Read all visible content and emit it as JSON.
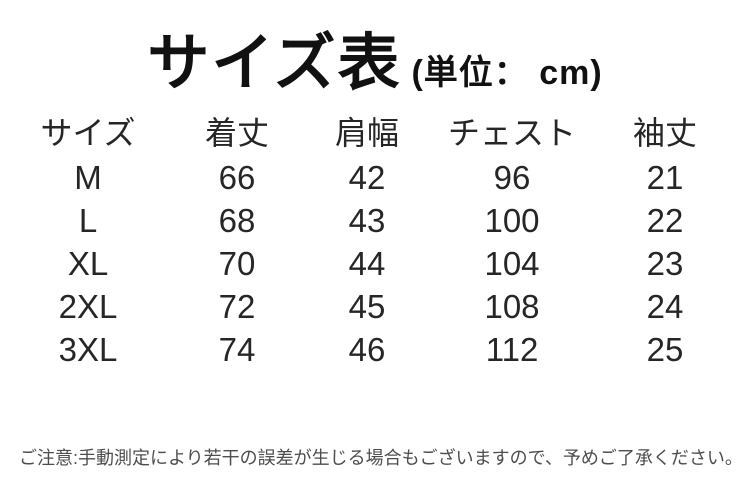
{
  "title": {
    "main": "サイズ表",
    "unit": "(単位： cm)"
  },
  "table": {
    "headers": [
      "サイズ",
      "着丈",
      "肩幅",
      "チェスト",
      "袖丈"
    ],
    "rows": [
      [
        "M",
        "66",
        "42",
        "96",
        "21"
      ],
      [
        "L",
        "68",
        "43",
        "100",
        "22"
      ],
      [
        "XL",
        "70",
        "44",
        "104",
        "23"
      ],
      [
        "2XL",
        "72",
        "45",
        "108",
        "24"
      ],
      [
        "3XL",
        "74",
        "46",
        "112",
        "25"
      ]
    ]
  },
  "note": "ご注意:手動測定により若干の誤差が生じる場合もございますので、予めご了承ください。",
  "colors": {
    "background": "#ffffff",
    "title_text": "#111111",
    "table_text": "#262626",
    "note_text": "#4d4d4d"
  },
  "chart_data": {
    "type": "table",
    "title": "サイズ表 (単位： cm)",
    "unit": "cm",
    "columns": [
      "サイズ",
      "着丈",
      "肩幅",
      "チェスト",
      "袖丈"
    ],
    "rows": [
      {
        "サイズ": "M",
        "着丈": 66,
        "肩幅": 42,
        "チェスト": 96,
        "袖丈": 21
      },
      {
        "サイズ": "L",
        "着丈": 68,
        "肩幅": 43,
        "チェスト": 100,
        "袖丈": 22
      },
      {
        "サイズ": "XL",
        "着丈": 70,
        "肩幅": 44,
        "チェスト": 104,
        "袖丈": 23
      },
      {
        "サイズ": "2XL",
        "着丈": 72,
        "肩幅": 45,
        "チェスト": 108,
        "袖丈": 24
      },
      {
        "サイズ": "3XL",
        "着丈": 74,
        "肩幅": 46,
        "チェスト": 112,
        "袖丈": 25
      }
    ],
    "note": "ご注意:手動測定により若干の誤差が生じる場合もございますので、予めご了承ください。"
  }
}
